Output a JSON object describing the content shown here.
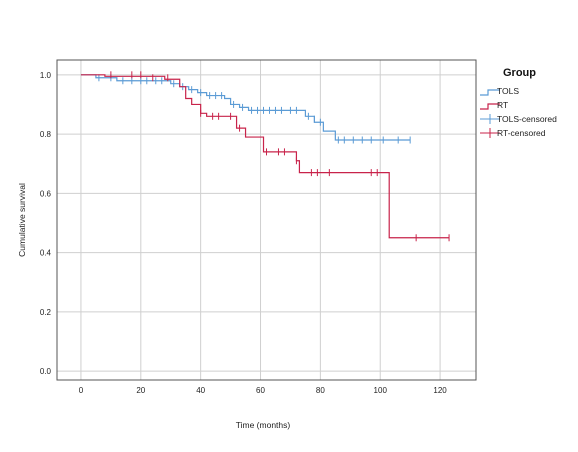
{
  "chart_data": {
    "type": "line",
    "subtype": "kaplan-meier step",
    "title": "",
    "xlabel": "Time (months)",
    "ylabel": "Cumulative survival",
    "xlim": [
      -8,
      132
    ],
    "ylim": [
      -0.03,
      1.05
    ],
    "xticks": [
      0,
      20,
      40,
      60,
      80,
      100,
      120
    ],
    "yticks": [
      0.0,
      0.2,
      0.4,
      0.6,
      0.8,
      1.0
    ],
    "xtick_labels": [
      "0",
      "20",
      "40",
      "60",
      "80",
      "100",
      "120"
    ],
    "ytick_labels": [
      "0.0",
      "0.2",
      "0.4",
      "0.6",
      "0.8",
      "1.0"
    ],
    "grid": true,
    "legend": {
      "title": "Group",
      "position": "top-right",
      "entries": [
        "TOLS",
        "RT",
        "TOLS-censored",
        "RT-censored"
      ]
    },
    "colors": {
      "TOLS": "#5b9bd5",
      "RT": "#c8234a",
      "grid": "#cfcfcf",
      "axis": "#555555"
    },
    "series": [
      {
        "name": "TOLS",
        "steps": [
          [
            0,
            1.0
          ],
          [
            5,
            0.99
          ],
          [
            12,
            0.98
          ],
          [
            30,
            0.97
          ],
          [
            33,
            0.96
          ],
          [
            36,
            0.95
          ],
          [
            39,
            0.94
          ],
          [
            42,
            0.93
          ],
          [
            48,
            0.92
          ],
          [
            50,
            0.9
          ],
          [
            53,
            0.89
          ],
          [
            56,
            0.88
          ],
          [
            75,
            0.86
          ],
          [
            78,
            0.84
          ],
          [
            81,
            0.81
          ],
          [
            85,
            0.78
          ],
          [
            110,
            0.78
          ]
        ],
        "censored": [
          [
            6,
            0.99
          ],
          [
            10,
            0.99
          ],
          [
            14,
            0.98
          ],
          [
            17,
            0.98
          ],
          [
            20,
            0.98
          ],
          [
            22,
            0.98
          ],
          [
            25,
            0.98
          ],
          [
            27,
            0.98
          ],
          [
            31,
            0.97
          ],
          [
            34,
            0.96
          ],
          [
            37,
            0.95
          ],
          [
            40,
            0.94
          ],
          [
            43,
            0.93
          ],
          [
            45,
            0.93
          ],
          [
            47,
            0.93
          ],
          [
            51,
            0.9
          ],
          [
            54,
            0.89
          ],
          [
            57,
            0.88
          ],
          [
            59,
            0.88
          ],
          [
            61,
            0.88
          ],
          [
            63,
            0.88
          ],
          [
            65,
            0.88
          ],
          [
            67,
            0.88
          ],
          [
            70,
            0.88
          ],
          [
            72,
            0.88
          ],
          [
            76,
            0.86
          ],
          [
            78,
            0.85
          ],
          [
            80,
            0.84
          ],
          [
            86,
            0.78
          ],
          [
            88,
            0.78
          ],
          [
            91,
            0.78
          ],
          [
            94,
            0.78
          ],
          [
            97,
            0.78
          ],
          [
            101,
            0.78
          ],
          [
            106,
            0.78
          ],
          [
            110,
            0.78
          ]
        ]
      },
      {
        "name": "RT",
        "steps": [
          [
            0,
            1.0
          ],
          [
            8,
            0.995
          ],
          [
            28,
            0.985
          ],
          [
            33,
            0.96
          ],
          [
            35,
            0.92
          ],
          [
            37,
            0.9
          ],
          [
            40,
            0.87
          ],
          [
            42,
            0.86
          ],
          [
            52,
            0.82
          ],
          [
            55,
            0.79
          ],
          [
            61,
            0.74
          ],
          [
            72,
            0.71
          ],
          [
            73,
            0.67
          ],
          [
            103,
            0.45
          ],
          [
            123,
            0.45
          ]
        ],
        "censored": [
          [
            10,
            1.0
          ],
          [
            17,
            1.0
          ],
          [
            20,
            1.0
          ],
          [
            24,
            0.99
          ],
          [
            29,
            0.99
          ],
          [
            40,
            0.87
          ],
          [
            44,
            0.86
          ],
          [
            46,
            0.86
          ],
          [
            50,
            0.86
          ],
          [
            53,
            0.82
          ],
          [
            62,
            0.74
          ],
          [
            66,
            0.74
          ],
          [
            68,
            0.74
          ],
          [
            72,
            0.71
          ],
          [
            77,
            0.67
          ],
          [
            79,
            0.67
          ],
          [
            83,
            0.67
          ],
          [
            97,
            0.67
          ],
          [
            99,
            0.67
          ],
          [
            112,
            0.45
          ],
          [
            123,
            0.45
          ]
        ]
      }
    ]
  }
}
